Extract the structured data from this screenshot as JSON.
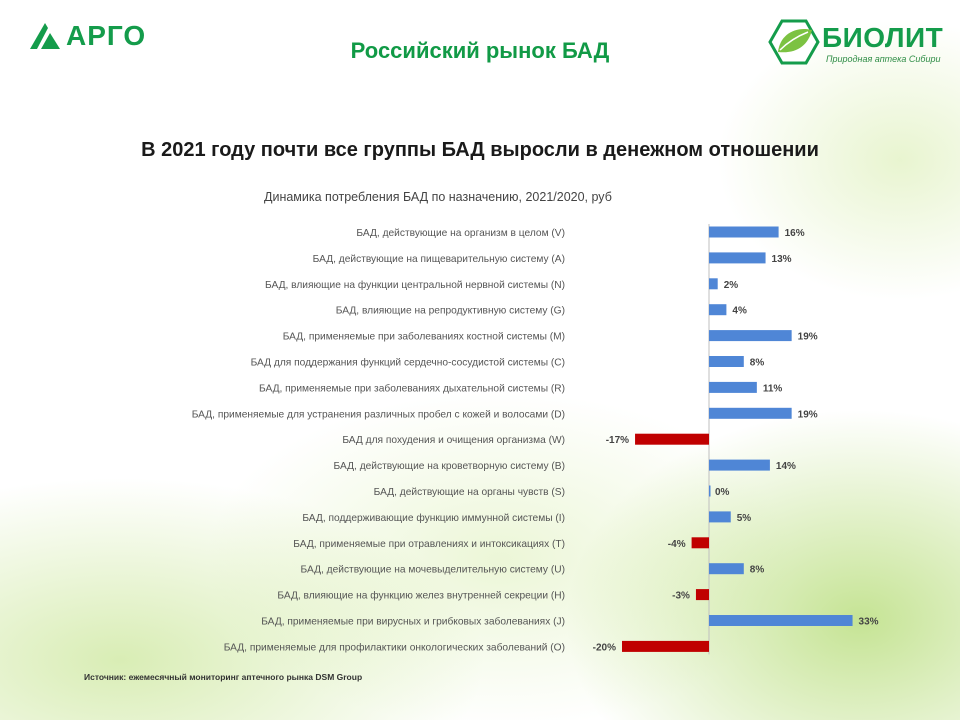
{
  "header": {
    "left_logo_text": "АРГО",
    "title": "Российский рынок БАД",
    "right_logo_name": "БИОЛИТ",
    "right_logo_tagline": "Природная аптека Сибири"
  },
  "heading": "В 2021 году почти все группы БАД выросли в денежном отношении",
  "source": "Источник: ежемесячный мониторинг аптечного рынка DSM Group",
  "colors": {
    "positive": "#4f86d6",
    "negative": "#c00000",
    "brand_green": "#149c4b"
  },
  "chart_data": {
    "type": "bar",
    "orientation": "horizontal",
    "title": "Динамика потребления БАД по назначению, 2021/2020, руб",
    "categories": [
      "БАД, действующие на организм в целом (V)",
      "БАД, действующие на пищеварительную систему (A)",
      "БАД, влияющие на функции центральной нервной системы (N)",
      "БАД, влияющие на репродуктивную систему (G)",
      "БАД, применяемые при заболеваниях костной системы (M)",
      "БАД для поддержания функций сердечно-сосудистой системы (C)",
      "БАД, применяемые при заболеваниях дыхательной системы (R)",
      "БАД, применяемые для устранения различных пробел с кожей и волосами (D)",
      "БАД для похудения и очищения организма (W)",
      "БАД, действующие на кроветворную систему (B)",
      "БАД, действующие на органы чувств (S)",
      "БАД, поддерживающие функцию иммунной системы (I)",
      "БАД, применяемые при отравлениях и интоксикациях (T)",
      "БАД, действующие на мочевыделительную систему (U)",
      "БАД, влияющие на функцию желез внутренней секреции (H)",
      "БАД, применяемые при вирусных и грибковых заболеваниях (J)",
      "БАД, применяемые для профилактики онкологических заболеваний (O)"
    ],
    "values": [
      16,
      13,
      2,
      4,
      19,
      8,
      11,
      19,
      -17,
      14,
      0,
      5,
      -4,
      8,
      -3,
      33,
      -20
    ],
    "data_labels": [
      "16%",
      "13%",
      "2%",
      "4%",
      "19%",
      "8%",
      "11%",
      "19%",
      "-17%",
      "14%",
      "0%",
      "5%",
      "-4%",
      "8%",
      "-3%",
      "33%",
      "-20%"
    ],
    "unit": "%",
    "xlim": [
      -20,
      33
    ],
    "grid": false,
    "legend": "none"
  }
}
